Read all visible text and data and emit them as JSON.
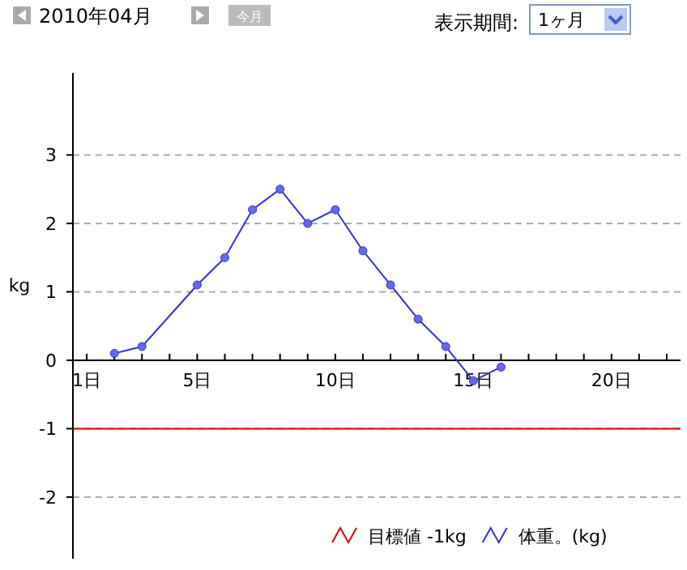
{
  "chart_data": {
    "type": "line",
    "title": "2010年04月",
    "ylabel": "kg",
    "annotations": [
      "今月",
      "表示期間:",
      "1ヶ月"
    ],
    "xlim": [
      0.5,
      22.5
    ],
    "xticks": [
      {
        "value": 1,
        "label": "1日"
      },
      {
        "value": 2,
        "label": null
      },
      {
        "value": 3,
        "label": null
      },
      {
        "value": 4,
        "label": null
      },
      {
        "value": 5,
        "label": "5日"
      },
      {
        "value": 6,
        "label": null
      },
      {
        "value": 7,
        "label": null
      },
      {
        "value": 8,
        "label": null
      },
      {
        "value": 9,
        "label": null
      },
      {
        "value": 10,
        "label": "10日"
      },
      {
        "value": 11,
        "label": null
      },
      {
        "value": 12,
        "label": null
      },
      {
        "value": 13,
        "label": null
      },
      {
        "value": 14,
        "label": null
      },
      {
        "value": 15,
        "label": "15日"
      },
      {
        "value": 16,
        "label": null
      },
      {
        "value": 17,
        "label": null
      },
      {
        "value": 18,
        "label": null
      },
      {
        "value": 19,
        "label": null
      },
      {
        "value": 20,
        "label": "20日"
      },
      {
        "value": 21,
        "label": null
      },
      {
        "value": 22,
        "label": null
      }
    ],
    "ylim": [
      -2.9,
      4.2
    ],
    "yticks": [
      -2,
      -1,
      0,
      1,
      2,
      3
    ],
    "grid": "y",
    "legend": "bottom",
    "series": [
      {
        "name": "目標値 -1kg",
        "color": "#dd0000",
        "marker": "none",
        "x": [
          0.5,
          22.5
        ],
        "values": [
          -1,
          -1
        ]
      },
      {
        "name": "体重。(kg)",
        "color": "#3333cc",
        "marker": "circle",
        "x": [
          2,
          3,
          5,
          6,
          7,
          8,
          9,
          10,
          11,
          12,
          13,
          14,
          15,
          16
        ],
        "values": [
          0.1,
          0.2,
          1.1,
          1.5,
          2.2,
          2.5,
          2.0,
          2.2,
          1.6,
          1.1,
          0.6,
          0.2,
          -0.3,
          -0.1
        ]
      }
    ]
  }
}
